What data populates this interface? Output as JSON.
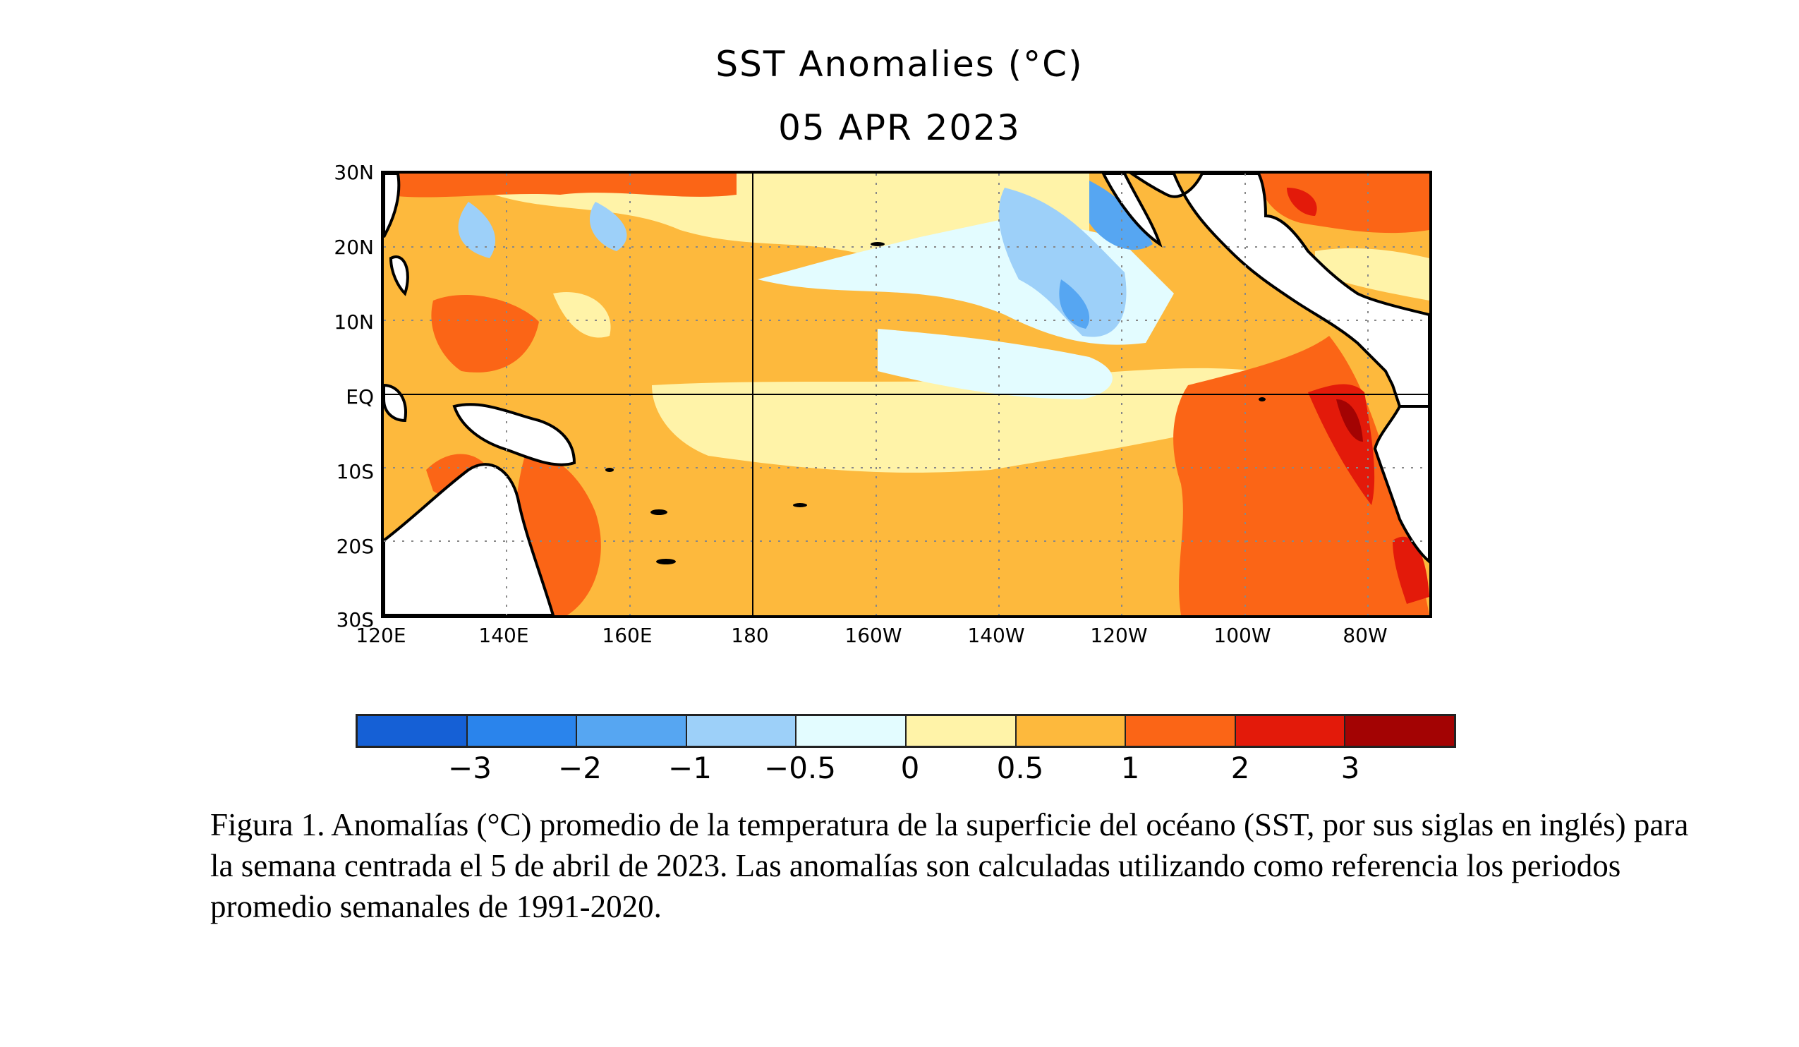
{
  "title": "SST Anomalies (°C)",
  "date": "05 APR 2023",
  "map": {
    "y_labels": [
      "30N",
      "20N",
      "10N",
      "EQ",
      "10S",
      "20S",
      "30S"
    ],
    "x_labels": [
      "120E",
      "140E",
      "160E",
      "180",
      "160W",
      "140W",
      "120W",
      "100W",
      "80W"
    ],
    "region": "Tropical Pacific Ocean",
    "lat_range": [
      "30S",
      "30N"
    ],
    "lon_range": [
      "120E",
      "70W"
    ]
  },
  "colorbar": {
    "ticks": [
      "−3",
      "−2",
      "−1",
      "−0.5",
      "0",
      "0.5",
      "1",
      "2",
      "3"
    ],
    "colors": [
      "#1560d6",
      "#2a84ec",
      "#56a6f2",
      "#9dd0f9",
      "#e3fcff",
      "#fff3a8",
      "#fdb93d",
      "#fb6516",
      "#e31a0a",
      "#a30303"
    ]
  },
  "caption": "Figura 1. Anomalías (°C) promedio de la temperatura de la superficie del océano (SST, por sus siglas en inglés) para la semana centrada el 5 de abril de 2023. Las anomalías son calculadas utilizando como referencia los periodos promedio semanales de 1991-2020."
}
